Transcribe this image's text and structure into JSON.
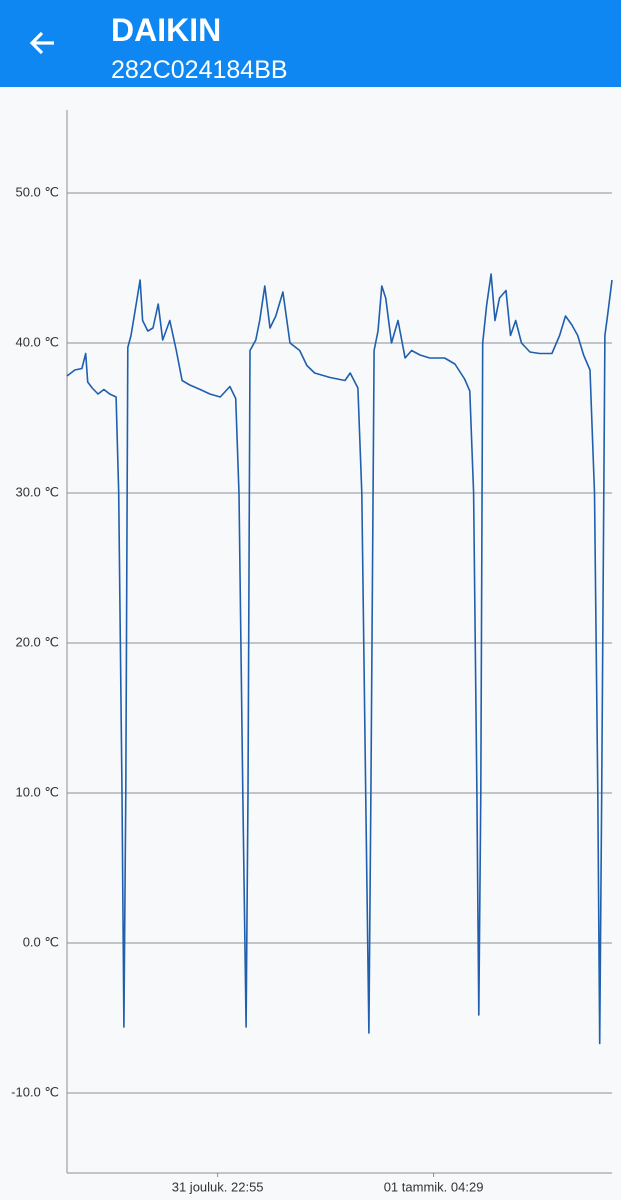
{
  "header": {
    "title": "DAIKIN",
    "subtitle": "282C024184BB"
  },
  "chart_data": {
    "type": "line",
    "color": "#1f5fad",
    "grid": true,
    "ylim": [
      -15.33,
      55.53
    ],
    "yticks": [
      {
        "value": -10,
        "label": "-10.0 ℃"
      },
      {
        "value": 0,
        "label": "0.0 ℃"
      },
      {
        "value": 10,
        "label": "10.0 ℃"
      },
      {
        "value": 20,
        "label": "20.0 ℃"
      },
      {
        "value": 30,
        "label": "30.0 ℃"
      },
      {
        "value": 40,
        "label": "40.0 ℃"
      },
      {
        "value": 50,
        "label": "50.0 ℃"
      }
    ],
    "xlim": [
      1142,
      1985
    ],
    "xticks": [
      {
        "value": 1375,
        "label": "31 jouluk. 22:55"
      },
      {
        "value": 1709,
        "label": "01 tammik. 04:29"
      }
    ],
    "x": [
      1142,
      1154,
      1165,
      1171,
      1174,
      1181,
      1190,
      1199,
      1208,
      1218,
      1222,
      1227,
      1230,
      1233,
      1236,
      1241,
      1249,
      1255,
      1259,
      1267,
      1275,
      1283,
      1290,
      1301,
      1311,
      1320,
      1332,
      1348,
      1363,
      1379,
      1394,
      1403,
      1408,
      1414,
      1419,
      1422,
      1425,
      1434,
      1440,
      1448,
      1456,
      1465,
      1476,
      1487,
      1502,
      1513,
      1525,
      1549,
      1572,
      1580,
      1592,
      1598,
      1604,
      1609,
      1612,
      1617,
      1623,
      1629,
      1635,
      1644,
      1654,
      1665,
      1675,
      1688,
      1703,
      1726,
      1742,
      1757,
      1765,
      1771,
      1776,
      1779,
      1782,
      1785,
      1791,
      1798,
      1804,
      1811,
      1821,
      1828,
      1836,
      1845,
      1858,
      1873,
      1892,
      1904,
      1913,
      1923,
      1932,
      1941,
      1951,
      1958,
      1963,
      1966,
      1969,
      1974,
      1978,
      1985
    ],
    "values": [
      37.8,
      38.2,
      38.3,
      39.3,
      37.4,
      37.0,
      36.6,
      36.9,
      36.6,
      36.4,
      30,
      10,
      -5.6,
      10,
      39.7,
      40.5,
      42.6,
      44.2,
      41.5,
      40.8,
      41.0,
      42.6,
      40.2,
      41.5,
      39.5,
      37.5,
      37.2,
      36.9,
      36.6,
      36.4,
      37.1,
      36.3,
      30,
      10,
      -5.6,
      10,
      39.5,
      40.2,
      41.5,
      43.8,
      41.0,
      41.8,
      43.4,
      40.0,
      39.5,
      38.5,
      38.0,
      37.7,
      37.5,
      38.0,
      37.0,
      30,
      10,
      -6.0,
      10,
      39.5,
      40.8,
      43.8,
      43.0,
      40.0,
      41.5,
      39.0,
      39.5,
      39.2,
      39.0,
      39.0,
      38.6,
      37.6,
      36.8,
      30,
      10,
      -4.8,
      10,
      40.0,
      42.5,
      44.6,
      41.5,
      43.0,
      43.5,
      40.5,
      41.5,
      40.0,
      39.4,
      39.3,
      39.3,
      40.5,
      41.8,
      41.2,
      40.5,
      39.2,
      38.2,
      30,
      10,
      -6.7,
      10,
      40.5,
      41.8,
      44.2
    ]
  }
}
